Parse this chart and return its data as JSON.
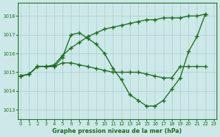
{
  "background_color": "#cce8e8",
  "grid_color": "#aacccc",
  "line_color": "#1a6b1a",
  "title": "Graphe pression niveau de la mer (hPa)",
  "xlabel_ticks": [
    0,
    1,
    2,
    3,
    4,
    5,
    6,
    7,
    8,
    9,
    10,
    11,
    12,
    13,
    14,
    15,
    16,
    17,
    18,
    19,
    20,
    21,
    22,
    23
  ],
  "yticks": [
    1013,
    1014,
    1015,
    1016,
    1017,
    1018
  ],
  "ylim": [
    1012.5,
    1018.7
  ],
  "xlim": [
    -0.3,
    23.3
  ],
  "line1_x": [
    0,
    1,
    2,
    3,
    4,
    5,
    6,
    7,
    8,
    9,
    10,
    11,
    12,
    13,
    14,
    15,
    16,
    17,
    18,
    19,
    20,
    21,
    22
  ],
  "line1_y": [
    1014.8,
    1014.9,
    1015.3,
    1015.3,
    1015.4,
    1015.9,
    1016.3,
    1016.6,
    1016.9,
    1017.1,
    1017.3,
    1017.4,
    1017.5,
    1017.6,
    1017.7,
    1017.8,
    1017.8,
    1017.9,
    1017.9,
    1017.9,
    1018.0,
    1018.0,
    1018.1
  ],
  "line2_x": [
    0,
    1,
    2,
    3,
    4,
    5,
    6,
    7,
    8,
    9,
    10,
    11,
    12,
    13,
    14,
    15,
    16,
    17,
    18,
    19,
    20,
    21,
    22
  ],
  "line2_y": [
    1014.8,
    1014.9,
    1015.3,
    1015.3,
    1015.3,
    1015.8,
    1017.0,
    1017.1,
    1016.8,
    1016.5,
    1016.0,
    1015.2,
    1014.6,
    1013.8,
    1013.5,
    1013.2,
    1013.2,
    1013.5,
    1014.1,
    1014.7,
    1016.1,
    1016.9,
    1018.1
  ],
  "line3_x": [
    0,
    1,
    2,
    3,
    4,
    5,
    6,
    7,
    8,
    9,
    10,
    11,
    12,
    13,
    14,
    15,
    16,
    17,
    18,
    19,
    20,
    21,
    22
  ],
  "line3_y": [
    1014.8,
    1014.9,
    1015.3,
    1015.3,
    1015.3,
    1015.5,
    1015.5,
    1015.4,
    1015.3,
    1015.2,
    1015.1,
    1015.0,
    1015.0,
    1015.0,
    1015.0,
    1014.9,
    1014.8,
    1014.7,
    1014.7,
    1015.3,
    1015.3,
    1015.3,
    1015.3
  ]
}
